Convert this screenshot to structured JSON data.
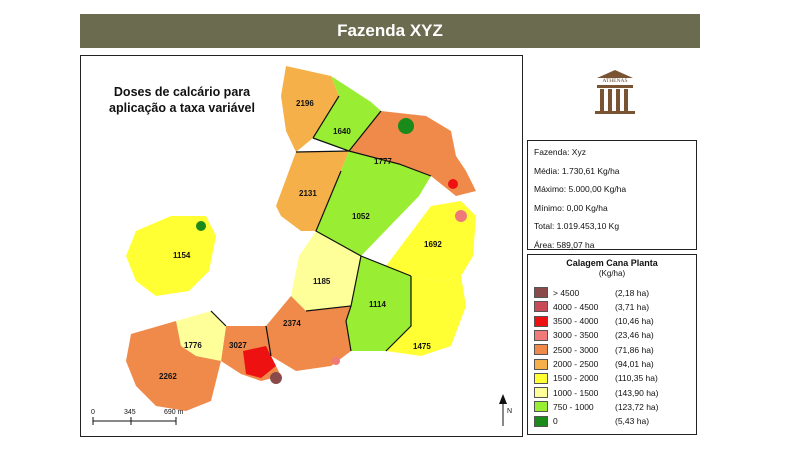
{
  "header": {
    "title": "Fazenda XYZ"
  },
  "map": {
    "heading_line1": "Doses de calcário para",
    "heading_line2": "aplicação a taxa variável",
    "fields": [
      {
        "id": "2196"
      },
      {
        "id": "1640"
      },
      {
        "id": "1777"
      },
      {
        "id": "2131"
      },
      {
        "id": "1052"
      },
      {
        "id": "1692"
      },
      {
        "id": "1154"
      },
      {
        "id": "1185"
      },
      {
        "id": "1114"
      },
      {
        "id": "2374"
      },
      {
        "id": "1475"
      },
      {
        "id": "1776"
      },
      {
        "id": "3027"
      },
      {
        "id": "2262"
      }
    ],
    "scale": {
      "start": "0",
      "mid": "345",
      "end": "690 m"
    },
    "north": "N"
  },
  "logo": {
    "name": "ATHENAS"
  },
  "stats": {
    "fazenda": "Fazenda: Xyz",
    "media": "Média: 1.730,61 Kg/ha",
    "maximo": "Máximo: 5.000,00 Kg/ha",
    "minimo": "Mínimo: 0,00 Kg/ha",
    "total": "Total: 1.019.453,10 Kg",
    "area": "Área: 589,07 ha"
  },
  "legend": {
    "title": "Calagem Cana Planta",
    "unit": "(Kg/ha)",
    "items": [
      {
        "range": "> 4500",
        "area": "(2,18 ha)",
        "color": "#8b4a4a"
      },
      {
        "range": "4000 - 4500",
        "area": "(3,71 ha)",
        "color": "#c84b55"
      },
      {
        "range": "3500 - 4000",
        "area": "(10,46 ha)",
        "color": "#ee1111"
      },
      {
        "range": "3000 - 3500",
        "area": "(23,46 ha)",
        "color": "#f07a7a"
      },
      {
        "range": "2500 - 3000",
        "area": "(71,86 ha)",
        "color": "#f08a4b"
      },
      {
        "range": "2000 - 2500",
        "area": "(94,01 ha)",
        "color": "#f5b049"
      },
      {
        "range": "1500 - 2000",
        "area": "(110,35 ha)",
        "color": "#ffff33"
      },
      {
        "range": "1000 - 1500",
        "area": "(143,90 ha)",
        "color": "#ffff99"
      },
      {
        "range": "750 - 1000",
        "area": "(123,72 ha)",
        "color": "#99ee33"
      },
      {
        "range": "0",
        "area": "(5,43 ha)",
        "color": "#1a8a1a"
      }
    ]
  }
}
